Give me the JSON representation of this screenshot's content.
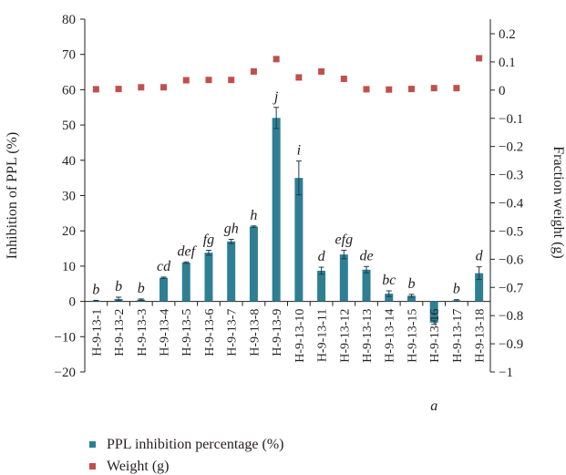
{
  "chart_data": {
    "type": "bar+scatter",
    "categories": [
      "H-9-13-1",
      "H-9-13-2",
      "H-9-13-3",
      "H-9-13-4",
      "H-9-13-5",
      "H-9-13-6",
      "H-9-13-7",
      "H-9-13-8",
      "H-9-13-9",
      "H-9-13-10",
      "H-9-13-11",
      "H-9-13-12",
      "H-9-13-13",
      "H-9-13-14",
      "H-9-13-15",
      "H-9-13-16",
      "H-9-13-17",
      "H-9-13-18"
    ],
    "ylabel": "Inhibition of PPL (%)",
    "y2label": "Fraction weight (g)",
    "ylim": [
      -20,
      80
    ],
    "yticks": [
      -20,
      -10,
      0,
      10,
      20,
      30,
      40,
      50,
      60,
      70,
      80
    ],
    "y2lim": [
      -1,
      0.25
    ],
    "y2ticks": [
      0.2,
      0.1,
      0,
      -0.1,
      -0.2,
      -0.3,
      -0.4,
      -0.5,
      -0.6,
      -0.7,
      -0.8,
      -0.9,
      -1
    ],
    "y2ticklabels": [
      "0.2",
      "0.1",
      "0",
      "−0.1",
      "−0.2",
      "−0.3",
      "−0.4",
      "−0.5",
      "−0.6",
      "−0.7",
      "−0.8",
      "−0.9",
      "−1"
    ],
    "yticklabels": [
      "−20",
      "−10",
      "0",
      "10",
      "20",
      "30",
      "40",
      "50",
      "60",
      "70",
      "80"
    ],
    "series": [
      {
        "name": "PPL inhibition percentage (%)",
        "type": "bar",
        "axis": "left",
        "color": "#2e7f94",
        "values": [
          0.2,
          0.7,
          0.5,
          6.7,
          11,
          13.8,
          17,
          21.2,
          52,
          35,
          8.7,
          13.3,
          9,
          2.2,
          1.6,
          -6,
          0.3,
          8
        ],
        "errors": [
          0.1,
          0.5,
          0.2,
          0.2,
          0.2,
          0.7,
          0.6,
          0.2,
          3,
          4.8,
          1,
          1.2,
          0.9,
          0.8,
          0.4,
          0.5,
          0.2,
          1.8
        ],
        "labels": [
          "b",
          "b",
          "b",
          "cd",
          "def",
          "fg",
          "gh",
          "h",
          "j",
          "i",
          "d",
          "efg",
          "de",
          "bc",
          "b",
          "a",
          "b",
          "d"
        ]
      },
      {
        "name": "Weight (g)",
        "type": "scatter",
        "axis": "right",
        "color": "#c0504d",
        "values": [
          0.003,
          0.004,
          0.01,
          0.01,
          0.035,
          0.036,
          0.036,
          0.066,
          0.11,
          0.045,
          0.066,
          0.04,
          0.003,
          0.002,
          0.004,
          0.007,
          0.007,
          0.113
        ]
      }
    ]
  }
}
